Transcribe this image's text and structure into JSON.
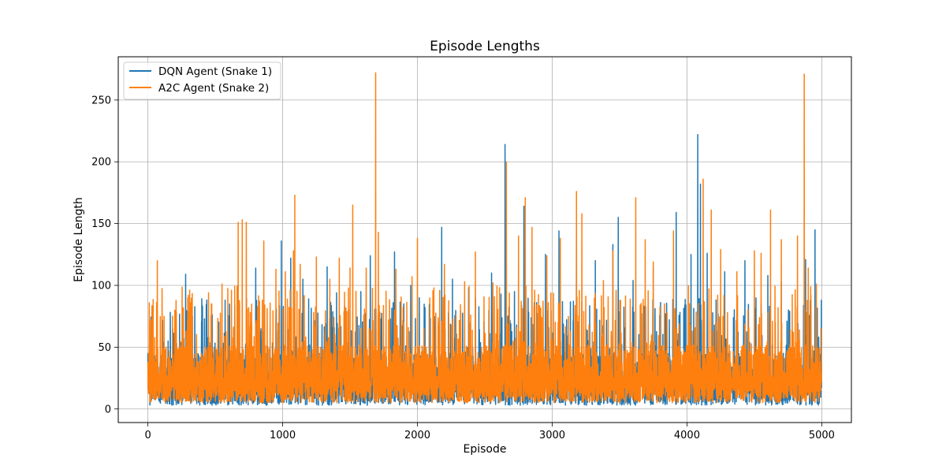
{
  "chart_data": {
    "type": "line",
    "title": "Episode Lengths",
    "xlabel": "Episode",
    "ylabel": "Episode Length",
    "xlim": [
      -220,
      5220
    ],
    "ylim": [
      -11,
      285
    ],
    "x_ticks": [
      0,
      1000,
      2000,
      3000,
      4000,
      5000
    ],
    "x_tick_labels": [
      "0",
      "1000",
      "2000",
      "3000",
      "4000",
      "5000"
    ],
    "y_ticks": [
      0,
      50,
      100,
      150,
      200,
      250
    ],
    "y_tick_labels": [
      "0",
      "50",
      "100",
      "150",
      "200",
      "250"
    ],
    "grid": true,
    "legend_position": "top-left",
    "series": [
      {
        "name": "DQN Agent (Snake 1)",
        "color": "#1f77b4",
        "episodes": 5000,
        "typical_range": [
          3,
          70
        ],
        "peaks": [
          [
            0,
            45
          ],
          [
            60,
            25
          ],
          [
            100,
            8
          ],
          [
            150,
            55
          ],
          [
            280,
            109
          ],
          [
            330,
            75
          ],
          [
            420,
            73
          ],
          [
            680,
            85
          ],
          [
            800,
            114
          ],
          [
            990,
            136
          ],
          [
            1060,
            122
          ],
          [
            1150,
            105
          ],
          [
            1330,
            115
          ],
          [
            1400,
            94
          ],
          [
            1580,
            95
          ],
          [
            1650,
            124
          ],
          [
            1830,
            127
          ],
          [
            1950,
            100
          ],
          [
            2180,
            147
          ],
          [
            2260,
            105
          ],
          [
            2380,
            98
          ],
          [
            2550,
            110
          ],
          [
            2620,
            93
          ],
          [
            2650,
            214
          ],
          [
            2720,
            95
          ],
          [
            2790,
            164
          ],
          [
            2950,
            125
          ],
          [
            3050,
            144
          ],
          [
            3180,
            150
          ],
          [
            3320,
            120
          ],
          [
            3450,
            133
          ],
          [
            3490,
            155
          ],
          [
            3600,
            104
          ],
          [
            3750,
            113
          ],
          [
            3920,
            159
          ],
          [
            4030,
            125
          ],
          [
            4080,
            222
          ],
          [
            4100,
            182
          ],
          [
            4150,
            126
          ],
          [
            4280,
            111
          ],
          [
            4430,
            120
          ],
          [
            4600,
            108
          ],
          [
            4700,
            103
          ],
          [
            4880,
            121
          ],
          [
            4950,
            145
          ],
          [
            4995,
            65
          ]
        ]
      },
      {
        "name": "A2C Agent (Snake 2)",
        "color": "#ff7f0e",
        "episodes": 5000,
        "typical_range": [
          5,
          80
        ],
        "peaks": [
          [
            10,
            86
          ],
          [
            20,
            72
          ],
          [
            70,
            120
          ],
          [
            120,
            75
          ],
          [
            200,
            80
          ],
          [
            300,
            92
          ],
          [
            450,
            94
          ],
          [
            550,
            101
          ],
          [
            620,
            96
          ],
          [
            670,
            151
          ],
          [
            700,
            153
          ],
          [
            730,
            151
          ],
          [
            760,
            78
          ],
          [
            860,
            136
          ],
          [
            950,
            113
          ],
          [
            1020,
            111
          ],
          [
            1080,
            128
          ],
          [
            1090,
            173
          ],
          [
            1130,
            117
          ],
          [
            1250,
            123
          ],
          [
            1350,
            105
          ],
          [
            1420,
            122
          ],
          [
            1500,
            114
          ],
          [
            1520,
            165
          ],
          [
            1620,
            114
          ],
          [
            1690,
            272
          ],
          [
            1710,
            143
          ],
          [
            1840,
            113
          ],
          [
            1960,
            107
          ],
          [
            2000,
            138
          ],
          [
            2200,
            117
          ],
          [
            2350,
            103
          ],
          [
            2430,
            127
          ],
          [
            2560,
            102
          ],
          [
            2660,
            200
          ],
          [
            2750,
            140
          ],
          [
            2800,
            171
          ],
          [
            2850,
            147
          ],
          [
            2960,
            124
          ],
          [
            3060,
            138
          ],
          [
            3180,
            176
          ],
          [
            3220,
            158
          ],
          [
            3380,
            104
          ],
          [
            3450,
            128
          ],
          [
            3620,
            171
          ],
          [
            3690,
            137
          ],
          [
            3750,
            119
          ],
          [
            3900,
            144
          ],
          [
            4120,
            186
          ],
          [
            4180,
            161
          ],
          [
            4250,
            129
          ],
          [
            4370,
            111
          ],
          [
            4500,
            128
          ],
          [
            4550,
            126
          ],
          [
            4620,
            161
          ],
          [
            4700,
            137
          ],
          [
            4820,
            140
          ],
          [
            4870,
            271
          ],
          [
            4900,
            114
          ],
          [
            4960,
            101
          ]
        ]
      }
    ]
  }
}
